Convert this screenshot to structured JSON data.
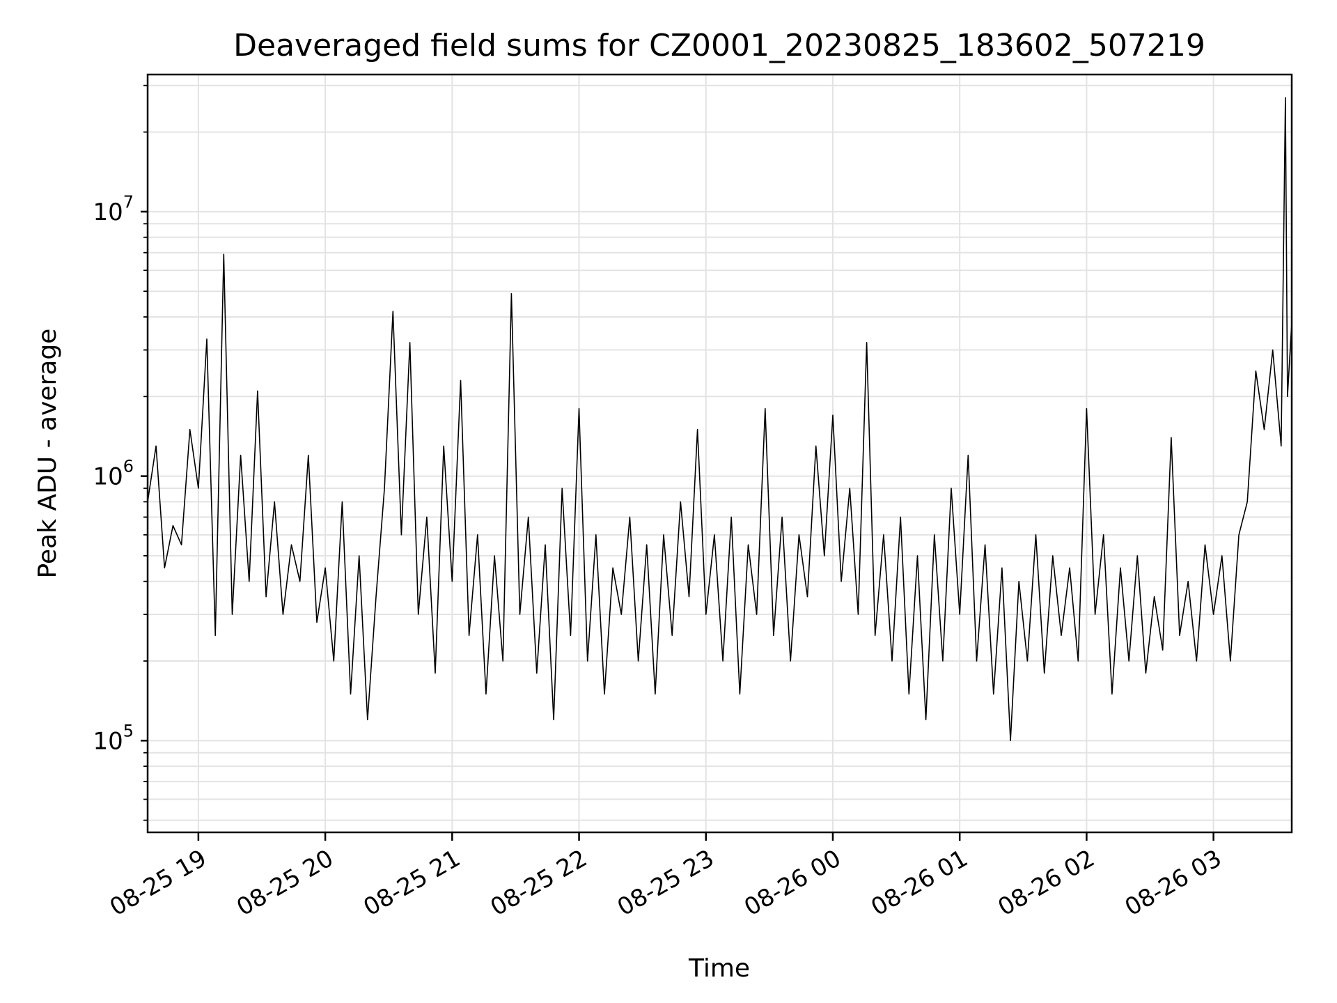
{
  "chart_data": {
    "type": "line",
    "title": "Deaveraged field sums for CZ0001_20230825_183602_507219",
    "xlabel": "Time",
    "ylabel": "Peak ADU - average",
    "y_scale": "log",
    "ylim": [
      45000,
      33000000
    ],
    "xlim": [
      "2023-08-25 18:36",
      "2023-08-26 03:37"
    ],
    "grid": true,
    "line_color": "#000000",
    "x_ticks": [
      "08-25 19",
      "08-25 20",
      "08-25 21",
      "08-25 22",
      "08-25 23",
      "08-26 00",
      "08-26 01",
      "08-26 02",
      "08-26 03"
    ],
    "y_ticks": [
      {
        "value": 100000,
        "base": "10",
        "exp": "5"
      },
      {
        "value": 1000000,
        "base": "10",
        "exp": "6"
      },
      {
        "value": 10000000,
        "base": "10",
        "exp": "7"
      }
    ],
    "series": [
      {
        "points": [
          [
            "2023-08-25 18:36",
            800000
          ],
          [
            "2023-08-25 18:40",
            1300000
          ],
          [
            "2023-08-25 18:44",
            450000
          ],
          [
            "2023-08-25 18:48",
            650000
          ],
          [
            "2023-08-25 18:52",
            550000
          ],
          [
            "2023-08-25 18:56",
            1500000
          ],
          [
            "2023-08-25 19:00",
            900000
          ],
          [
            "2023-08-25 19:04",
            3300000
          ],
          [
            "2023-08-25 19:08",
            250000
          ],
          [
            "2023-08-25 19:12",
            6900000
          ],
          [
            "2023-08-25 19:16",
            300000
          ],
          [
            "2023-08-25 19:20",
            1200000
          ],
          [
            "2023-08-25 19:24",
            400000
          ],
          [
            "2023-08-25 19:28",
            2100000
          ],
          [
            "2023-08-25 19:32",
            350000
          ],
          [
            "2023-08-25 19:36",
            800000
          ],
          [
            "2023-08-25 19:40",
            300000
          ],
          [
            "2023-08-25 19:44",
            550000
          ],
          [
            "2023-08-25 19:48",
            400000
          ],
          [
            "2023-08-25 19:52",
            1200000
          ],
          [
            "2023-08-25 19:56",
            280000
          ],
          [
            "2023-08-25 20:00",
            450000
          ],
          [
            "2023-08-25 20:04",
            200000
          ],
          [
            "2023-08-25 20:08",
            800000
          ],
          [
            "2023-08-25 20:12",
            150000
          ],
          [
            "2023-08-25 20:16",
            500000
          ],
          [
            "2023-08-25 20:20",
            120000
          ],
          [
            "2023-08-25 20:24",
            350000
          ],
          [
            "2023-08-25 20:28",
            900000
          ],
          [
            "2023-08-25 20:32",
            4200000
          ],
          [
            "2023-08-25 20:36",
            600000
          ],
          [
            "2023-08-25 20:40",
            3200000
          ],
          [
            "2023-08-25 20:44",
            300000
          ],
          [
            "2023-08-25 20:48",
            700000
          ],
          [
            "2023-08-25 20:52",
            180000
          ],
          [
            "2023-08-25 20:56",
            1300000
          ],
          [
            "2023-08-25 21:00",
            400000
          ],
          [
            "2023-08-25 21:04",
            2300000
          ],
          [
            "2023-08-25 21:08",
            250000
          ],
          [
            "2023-08-25 21:12",
            600000
          ],
          [
            "2023-08-25 21:16",
            150000
          ],
          [
            "2023-08-25 21:20",
            500000
          ],
          [
            "2023-08-25 21:24",
            200000
          ],
          [
            "2023-08-25 21:28",
            4900000
          ],
          [
            "2023-08-25 21:32",
            300000
          ],
          [
            "2023-08-25 21:36",
            700000
          ],
          [
            "2023-08-25 21:40",
            180000
          ],
          [
            "2023-08-25 21:44",
            550000
          ],
          [
            "2023-08-25 21:48",
            120000
          ],
          [
            "2023-08-25 21:52",
            900000
          ],
          [
            "2023-08-25 21:56",
            250000
          ],
          [
            "2023-08-25 22:00",
            1800000
          ],
          [
            "2023-08-25 22:04",
            200000
          ],
          [
            "2023-08-25 22:08",
            600000
          ],
          [
            "2023-08-25 22:12",
            150000
          ],
          [
            "2023-08-25 22:16",
            450000
          ],
          [
            "2023-08-25 22:20",
            300000
          ],
          [
            "2023-08-25 22:24",
            700000
          ],
          [
            "2023-08-25 22:28",
            200000
          ],
          [
            "2023-08-25 22:32",
            550000
          ],
          [
            "2023-08-25 22:36",
            150000
          ],
          [
            "2023-08-25 22:40",
            600000
          ],
          [
            "2023-08-25 22:44",
            250000
          ],
          [
            "2023-08-25 22:48",
            800000
          ],
          [
            "2023-08-25 22:52",
            350000
          ],
          [
            "2023-08-25 22:56",
            1500000
          ],
          [
            "2023-08-25 23:00",
            300000
          ],
          [
            "2023-08-25 23:04",
            600000
          ],
          [
            "2023-08-25 23:08",
            200000
          ],
          [
            "2023-08-25 23:12",
            700000
          ],
          [
            "2023-08-25 23:16",
            150000
          ],
          [
            "2023-08-25 23:20",
            550000
          ],
          [
            "2023-08-25 23:24",
            300000
          ],
          [
            "2023-08-25 23:28",
            1800000
          ],
          [
            "2023-08-25 23:32",
            250000
          ],
          [
            "2023-08-25 23:36",
            700000
          ],
          [
            "2023-08-25 23:40",
            200000
          ],
          [
            "2023-08-25 23:44",
            600000
          ],
          [
            "2023-08-25 23:48",
            350000
          ],
          [
            "2023-08-25 23:52",
            1300000
          ],
          [
            "2023-08-25 23:56",
            500000
          ],
          [
            "2023-08-26 00:00",
            1700000
          ],
          [
            "2023-08-26 00:04",
            400000
          ],
          [
            "2023-08-26 00:08",
            900000
          ],
          [
            "2023-08-26 00:12",
            300000
          ],
          [
            "2023-08-26 00:16",
            3200000
          ],
          [
            "2023-08-26 00:20",
            250000
          ],
          [
            "2023-08-26 00:24",
            600000
          ],
          [
            "2023-08-26 00:28",
            200000
          ],
          [
            "2023-08-26 00:32",
            700000
          ],
          [
            "2023-08-26 00:36",
            150000
          ],
          [
            "2023-08-26 00:40",
            500000
          ],
          [
            "2023-08-26 00:44",
            120000
          ],
          [
            "2023-08-26 00:48",
            600000
          ],
          [
            "2023-08-26 00:52",
            200000
          ],
          [
            "2023-08-26 00:56",
            900000
          ],
          [
            "2023-08-26 01:00",
            300000
          ],
          [
            "2023-08-26 01:04",
            1200000
          ],
          [
            "2023-08-26 01:08",
            200000
          ],
          [
            "2023-08-26 01:12",
            550000
          ],
          [
            "2023-08-26 01:16",
            150000
          ],
          [
            "2023-08-26 01:20",
            450000
          ],
          [
            "2023-08-26 01:24",
            100000
          ],
          [
            "2023-08-26 01:28",
            400000
          ],
          [
            "2023-08-26 01:32",
            200000
          ],
          [
            "2023-08-26 01:36",
            600000
          ],
          [
            "2023-08-26 01:40",
            180000
          ],
          [
            "2023-08-26 01:44",
            500000
          ],
          [
            "2023-08-26 01:48",
            250000
          ],
          [
            "2023-08-26 01:52",
            450000
          ],
          [
            "2023-08-26 01:56",
            200000
          ],
          [
            "2023-08-26 02:00",
            1800000
          ],
          [
            "2023-08-26 02:04",
            300000
          ],
          [
            "2023-08-26 02:08",
            600000
          ],
          [
            "2023-08-26 02:12",
            150000
          ],
          [
            "2023-08-26 02:16",
            450000
          ],
          [
            "2023-08-26 02:20",
            200000
          ],
          [
            "2023-08-26 02:24",
            500000
          ],
          [
            "2023-08-26 02:28",
            180000
          ],
          [
            "2023-08-26 02:32",
            350000
          ],
          [
            "2023-08-26 02:36",
            220000
          ],
          [
            "2023-08-26 02:40",
            1400000
          ],
          [
            "2023-08-26 02:44",
            250000
          ],
          [
            "2023-08-26 02:48",
            400000
          ],
          [
            "2023-08-26 02:52",
            200000
          ],
          [
            "2023-08-26 02:56",
            550000
          ],
          [
            "2023-08-26 03:00",
            300000
          ],
          [
            "2023-08-26 03:04",
            500000
          ],
          [
            "2023-08-26 03:08",
            200000
          ],
          [
            "2023-08-26 03:12",
            600000
          ],
          [
            "2023-08-26 03:16",
            800000
          ],
          [
            "2023-08-26 03:20",
            2500000
          ],
          [
            "2023-08-26 03:24",
            1500000
          ],
          [
            "2023-08-26 03:28",
            3000000
          ],
          [
            "2023-08-26 03:32",
            1300000
          ],
          [
            "2023-08-26 03:34",
            27000000
          ],
          [
            "2023-08-26 03:35",
            2000000
          ],
          [
            "2023-08-26 03:37",
            3800000
          ]
        ]
      }
    ]
  }
}
